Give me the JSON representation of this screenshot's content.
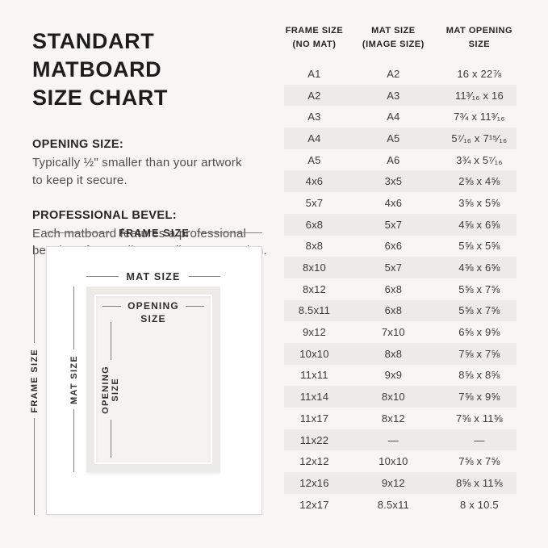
{
  "title": {
    "line1": "STANDART MATBOARD",
    "line2": "SIZE CHART"
  },
  "info_sections": [
    {
      "heading": "OPENING SIZE:",
      "body": "Typically ½\" smaller than your artwork\nto keep it secure."
    },
    {
      "heading": "PROFESSIONAL BEVEL:",
      "body": "Each matboard features a professional\nbevel cut for a gallery-quality presentation."
    }
  ],
  "diagram": {
    "frame_label": "FRAME SIZE",
    "mat_label": "MAT SIZE",
    "opening_label_line1": "OPENING",
    "opening_label_line2": "SIZE"
  },
  "table": {
    "headers": [
      {
        "line1": "FRAME SIZE",
        "line2": "(NO MAT)"
      },
      {
        "line1": "MAT SIZE",
        "line2": "(IMAGE SIZE)"
      },
      {
        "line1": "MAT OPENING",
        "line2": "SIZE"
      }
    ]
  },
  "chart_data": {
    "type": "table",
    "title": "STANDART MATBOARD SIZE CHART",
    "columns": [
      "FRAME SIZE (NO MAT)",
      "MAT SIZE (IMAGE SIZE)",
      "MAT OPENING SIZE"
    ],
    "rows": [
      [
        "A1",
        "A2",
        "16 x 22⅞"
      ],
      [
        "A2",
        "A3",
        "11³⁄₁₆ x 16"
      ],
      [
        "A3",
        "A4",
        "7¾ x 11³⁄₁₆"
      ],
      [
        "A4",
        "A5",
        "5⁷⁄₁₆ x 7¹⁵⁄₁₆"
      ],
      [
        "A5",
        "A6",
        "3¾ x 5⁷⁄₁₆"
      ],
      [
        "4x6",
        "3x5",
        "2⅝ x 4⅝"
      ],
      [
        "5x7",
        "4x6",
        "3⅝ x 5⅝"
      ],
      [
        "6x8",
        "5x7",
        "4⅝ x 6⅝"
      ],
      [
        "8x8",
        "6x6",
        "5⅝ x 5⅝"
      ],
      [
        "8x10",
        "5x7",
        "4⅝ x 6⅝"
      ],
      [
        "8x12",
        "6x8",
        "5⅝ x 7⅝"
      ],
      [
        "8.5x11",
        "6x8",
        "5⅝ x 7⅝"
      ],
      [
        "9x12",
        "7x10",
        "6⅝ x 9⅝"
      ],
      [
        "10x10",
        "8x8",
        "7⅝ x 7⅝"
      ],
      [
        "11x11",
        "9x9",
        "8⅝ x 8⅝"
      ],
      [
        "11x14",
        "8x10",
        "7⅝ x 9⅝"
      ],
      [
        "11x17",
        "8x12",
        "7⅝ x 11⅝"
      ],
      [
        "11x22",
        "—",
        "—"
      ],
      [
        "12x12",
        "10x10",
        "7⅝ x 7⅝"
      ],
      [
        "12x16",
        "9x12",
        "8⅝ x 11⅝"
      ],
      [
        "12x17",
        "8.5x11",
        "8 x 10.5"
      ]
    ]
  },
  "colors": {
    "background": "#f7f6f3",
    "row_alt": "#ecebe8",
    "mat_fill": "#eceae7",
    "opening_fill": "#f4f3f0",
    "frame_fill": "#ffffff",
    "text_dark": "#1d1d1d",
    "text_body": "#4f4f4f",
    "dimension_line": "#818181"
  }
}
